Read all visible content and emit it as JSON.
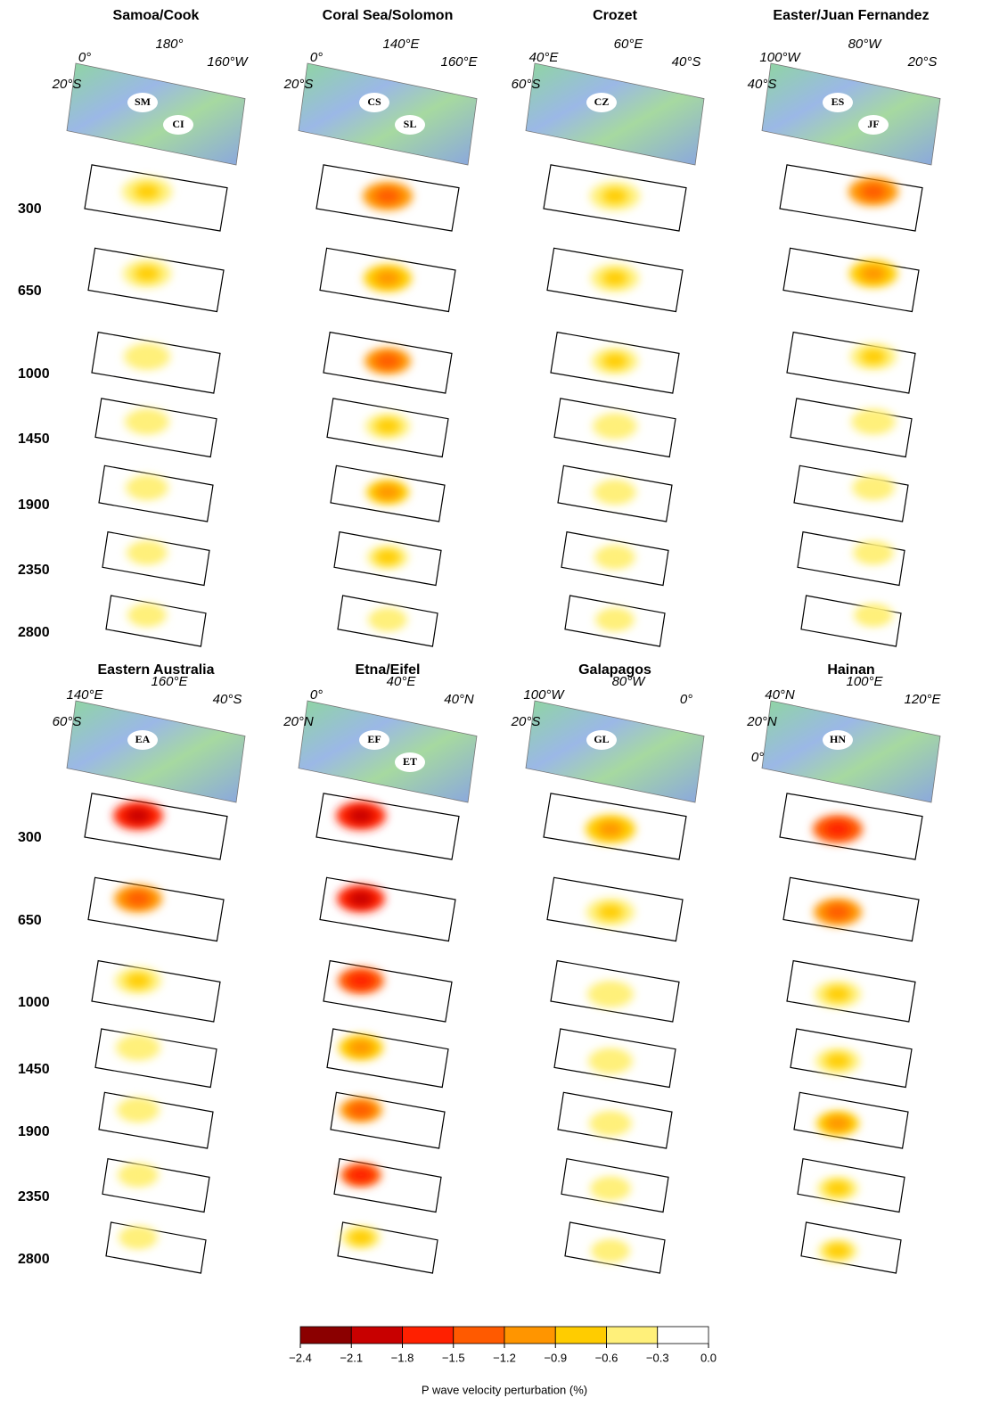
{
  "groups": [
    {
      "depths": [
        300,
        650,
        1000,
        1450,
        1900,
        2350,
        2800
      ],
      "panels": [
        {
          "title": "Samoa/Cook",
          "axis_labels": [
            "0°",
            "180°",
            "160°W",
            "20°S"
          ],
          "hotspots": [
            "SM",
            "CI"
          ]
        },
        {
          "title": "Coral Sea/Solomon",
          "axis_labels": [
            "0°",
            "140°E",
            "160°E",
            "20°S"
          ],
          "hotspots": [
            "CS",
            "SL"
          ]
        },
        {
          "title": "Crozet",
          "axis_labels": [
            "40°E",
            "60°E",
            "40°S",
            "60°S"
          ],
          "hotspots": [
            "CZ"
          ]
        },
        {
          "title": "Easter/Juan Fernandez",
          "axis_labels": [
            "100°W",
            "80°W",
            "20°S",
            "40°S"
          ],
          "hotspots": [
            "ES",
            "JF"
          ]
        }
      ]
    },
    {
      "depths": [
        300,
        650,
        1000,
        1450,
        1900,
        2350,
        2800
      ],
      "panels": [
        {
          "title": "Eastern Australia",
          "axis_labels": [
            "140°E",
            "160°E",
            "40°S",
            "60°S"
          ],
          "hotspots": [
            "EA"
          ]
        },
        {
          "title": "Etna/Eifel",
          "axis_labels": [
            "0°",
            "40°E",
            "40°N",
            "20°N"
          ],
          "hotspots": [
            "EF",
            "ET"
          ]
        },
        {
          "title": "Galapagos",
          "axis_labels": [
            "100°W",
            "80°W",
            "0°",
            "20°S"
          ],
          "hotspots": [
            "GL"
          ]
        },
        {
          "title": "Hainan",
          "axis_labels": [
            "40°N",
            "100°E",
            "120°E",
            "20°N",
            "0°"
          ],
          "hotspots": [
            "HN"
          ]
        }
      ]
    }
  ],
  "colorbar": {
    "colors": [
      "#8b0000",
      "#c80000",
      "#ff2000",
      "#ff5a00",
      "#ff9500",
      "#ffcc00",
      "#fff07a",
      "#ffffff"
    ],
    "ticks": [
      {
        "value": -2.4,
        "label": "−2.4"
      },
      {
        "value": -2.1,
        "label": "−2.1"
      },
      {
        "value": -1.8,
        "label": "−1.8"
      },
      {
        "value": -1.5,
        "label": "−1.5"
      },
      {
        "value": -1.2,
        "label": "−1.2"
      },
      {
        "value": -0.9,
        "label": "−0.9"
      },
      {
        "value": -0.6,
        "label": "−0.6"
      },
      {
        "value": -0.3,
        "label": "−0.3"
      },
      {
        "value": 0,
        "label": "0.0"
      }
    ],
    "label": "P wave velocity perturbation (%)"
  }
}
